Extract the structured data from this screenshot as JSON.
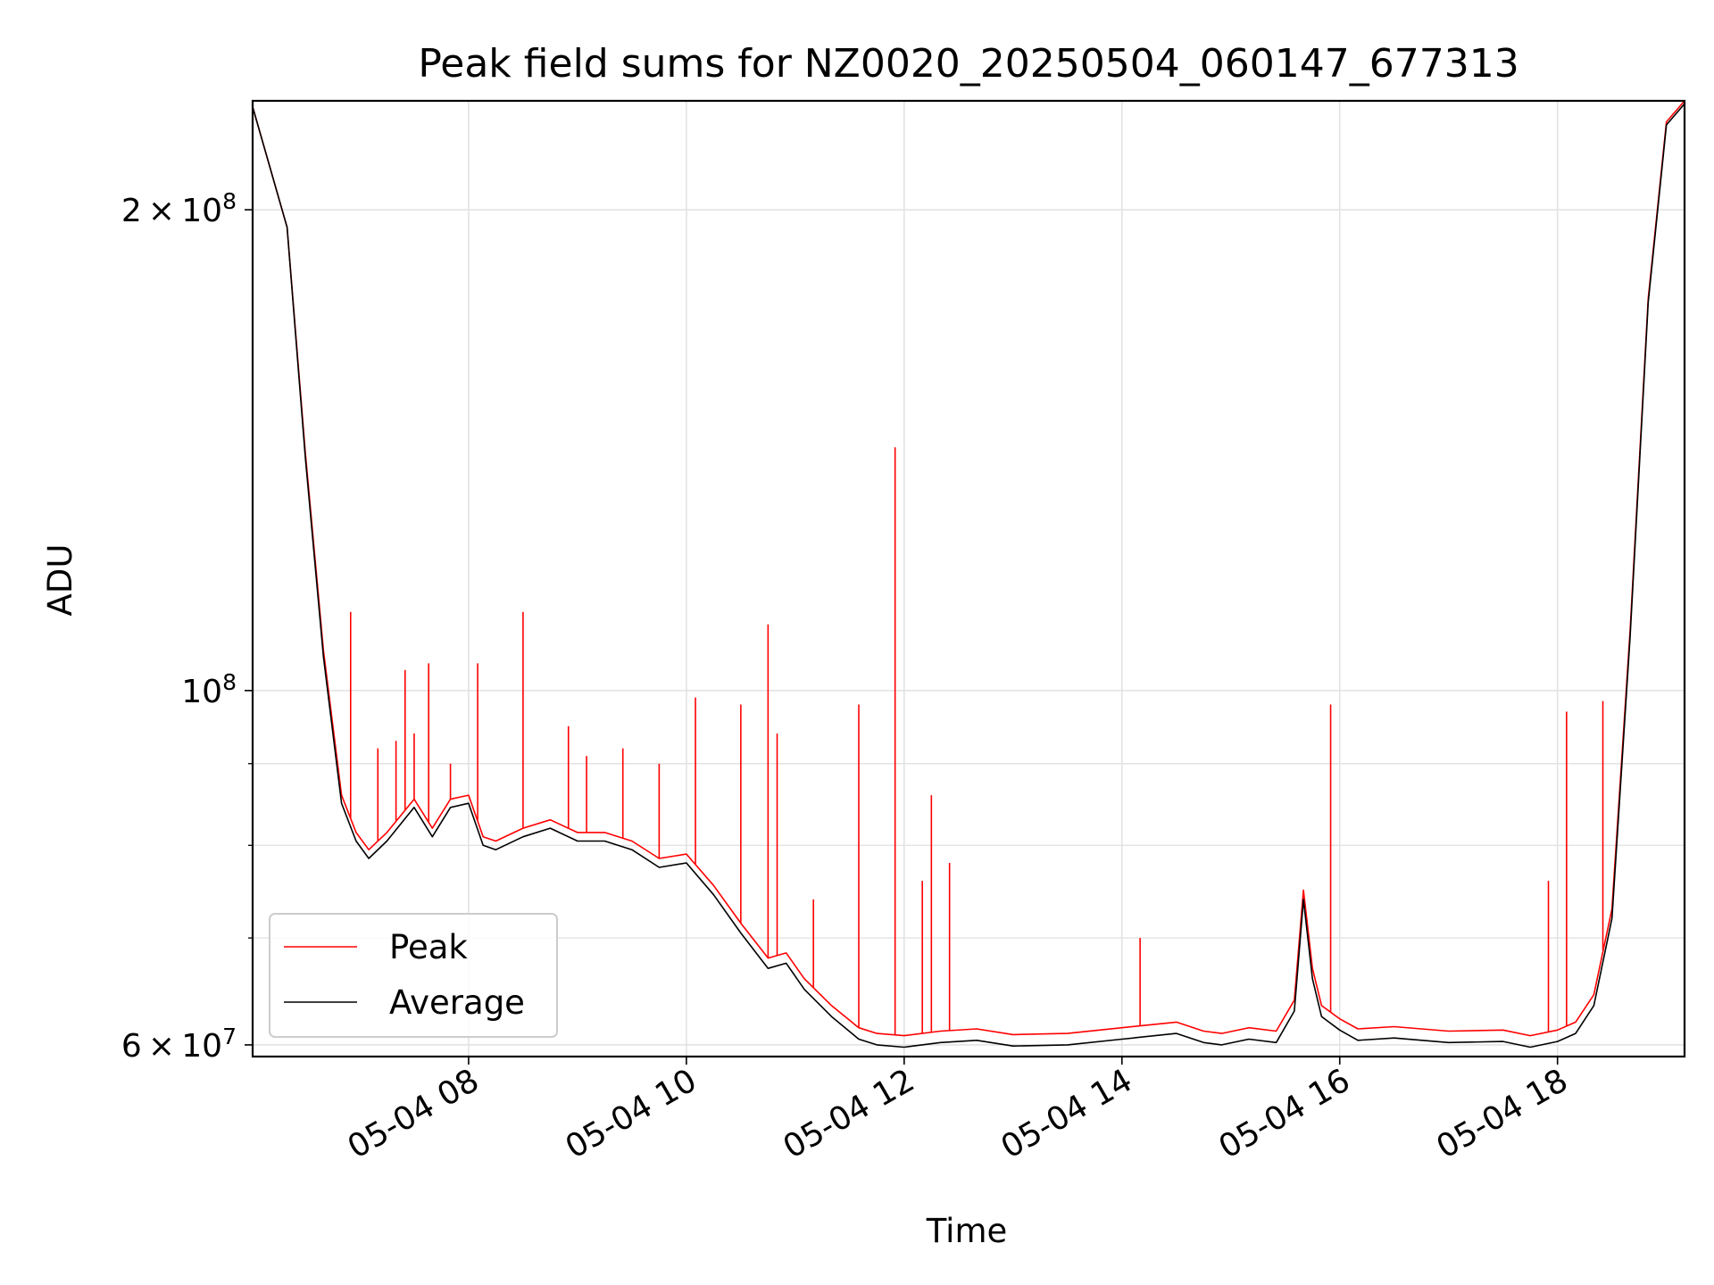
{
  "chart_data": {
    "type": "line",
    "title": "Peak field sums for NZ0020_20250504_060147_677313",
    "xlabel": "Time",
    "ylabel": "ADU",
    "x_date": "2025-05-04",
    "x_range": [
      "06:01",
      "19:10"
    ],
    "y_scale": "log",
    "ylim": [
      59000000,
      234000000
    ],
    "grid": true,
    "legend_position": "lower-left",
    "x_ticks": [
      {
        "value": "08:00",
        "label": "05-04 08"
      },
      {
        "value": "10:00",
        "label": "05-04 10"
      },
      {
        "value": "12:00",
        "label": "05-04 12"
      },
      {
        "value": "14:00",
        "label": "05-04 14"
      },
      {
        "value": "16:00",
        "label": "05-04 16"
      },
      {
        "value": "18:00",
        "label": "05-04 18"
      }
    ],
    "y_ticks": [
      {
        "value": 60000000,
        "base": "6",
        "exp": "7"
      },
      {
        "value": 100000000,
        "base": "",
        "exp": "8"
      },
      {
        "value": 200000000,
        "base": "2",
        "exp": "8"
      }
    ],
    "y_minor_ticks": [
      70000000,
      80000000,
      90000000
    ],
    "series": [
      {
        "name": "Average",
        "color": "#000000",
        "x": [
          "06:01",
          "06:20",
          "06:30",
          "06:40",
          "06:50",
          "06:58",
          "07:05",
          "07:15",
          "07:30",
          "07:40",
          "07:50",
          "08:00",
          "08:08",
          "08:15",
          "08:30",
          "08:45",
          "09:00",
          "09:15",
          "09:30",
          "09:45",
          "10:00",
          "10:15",
          "10:30",
          "10:45",
          "10:55",
          "11:05",
          "11:20",
          "11:35",
          "11:45",
          "12:00",
          "12:20",
          "12:40",
          "13:00",
          "13:30",
          "14:00",
          "14:30",
          "14:45",
          "14:55",
          "15:10",
          "15:25",
          "15:35",
          "15:40",
          "15:45",
          "15:50",
          "16:00",
          "16:10",
          "16:30",
          "17:00",
          "17:30",
          "17:45",
          "18:00",
          "18:10",
          "18:20",
          "18:30",
          "18:40",
          "18:50",
          "19:00",
          "19:10"
        ],
        "y": [
          232000000,
          195000000,
          140000000,
          105000000,
          85000000,
          80500000,
          78500000,
          80500000,
          84500000,
          81000000,
          84500000,
          85000000,
          80000000,
          79500000,
          81000000,
          82000000,
          80500000,
          80500000,
          79500000,
          77500000,
          78000000,
          74500000,
          70500000,
          67000000,
          67500000,
          65000000,
          62500000,
          60500000,
          60000000,
          59800000,
          60200000,
          60400000,
          59900000,
          60000000,
          60500000,
          61000000,
          60200000,
          60000000,
          60500000,
          60200000,
          63000000,
          74000000,
          66000000,
          62500000,
          61300000,
          60400000,
          60600000,
          60200000,
          60300000,
          59800000,
          60300000,
          61000000,
          63500000,
          72000000,
          108000000,
          175000000,
          226000000,
          233000000
        ]
      },
      {
        "name": "Peak",
        "color": "#ff0000",
        "x": [
          "06:01",
          "06:20",
          "06:30",
          "06:40",
          "06:50",
          "06:58",
          "07:05",
          "07:15",
          "07:30",
          "07:40",
          "07:50",
          "08:00",
          "08:08",
          "08:15",
          "08:30",
          "08:45",
          "09:00",
          "09:15",
          "09:30",
          "09:45",
          "10:00",
          "10:15",
          "10:30",
          "10:45",
          "10:55",
          "11:05",
          "11:20",
          "11:35",
          "11:45",
          "12:00",
          "12:20",
          "12:40",
          "13:00",
          "13:30",
          "14:00",
          "14:30",
          "14:45",
          "14:55",
          "15:10",
          "15:25",
          "15:35",
          "15:40",
          "15:45",
          "15:50",
          "16:00",
          "16:10",
          "16:30",
          "17:00",
          "17:30",
          "17:45",
          "18:00",
          "18:10",
          "18:20",
          "18:30",
          "18:40",
          "18:50",
          "19:00",
          "19:10"
        ],
        "y": [
          232000000,
          195000000,
          141000000,
          106000000,
          86000000,
          81500000,
          79500000,
          81500000,
          85500000,
          82000000,
          85500000,
          86000000,
          81000000,
          80500000,
          82000000,
          83000000,
          81500000,
          81500000,
          80500000,
          78500000,
          79000000,
          75500000,
          71500000,
          68000000,
          68500000,
          66000000,
          63500000,
          61500000,
          61000000,
          60800000,
          61200000,
          61400000,
          60900000,
          61000000,
          61500000,
          62000000,
          61200000,
          61000000,
          61500000,
          61200000,
          64000000,
          75000000,
          67000000,
          63500000,
          62300000,
          61400000,
          61600000,
          61200000,
          61300000,
          60800000,
          61300000,
          62000000,
          64500000,
          73000000,
          109000000,
          176000000,
          227000000,
          234000000
        ],
        "spikes": [
          {
            "x": "06:55",
            "y": 112000000
          },
          {
            "x": "07:10",
            "y": 92000000
          },
          {
            "x": "07:20",
            "y": 93000000
          },
          {
            "x": "07:25",
            "y": 103000000
          },
          {
            "x": "07:30",
            "y": 94000000
          },
          {
            "x": "07:38",
            "y": 104000000
          },
          {
            "x": "07:50",
            "y": 90000000
          },
          {
            "x": "08:05",
            "y": 104000000
          },
          {
            "x": "08:30",
            "y": 112000000
          },
          {
            "x": "08:55",
            "y": 95000000
          },
          {
            "x": "09:05",
            "y": 91000000
          },
          {
            "x": "09:25",
            "y": 92000000
          },
          {
            "x": "09:45",
            "y": 90000000
          },
          {
            "x": "10:05",
            "y": 99000000
          },
          {
            "x": "10:30",
            "y": 98000000
          },
          {
            "x": "10:45",
            "y": 110000000
          },
          {
            "x": "10:50",
            "y": 94000000
          },
          {
            "x": "11:10",
            "y": 74000000
          },
          {
            "x": "11:35",
            "y": 98000000
          },
          {
            "x": "11:55",
            "y": 142000000
          },
          {
            "x": "12:10",
            "y": 76000000
          },
          {
            "x": "12:15",
            "y": 86000000
          },
          {
            "x": "12:25",
            "y": 78000000
          },
          {
            "x": "14:10",
            "y": 70000000
          },
          {
            "x": "15:55",
            "y": 98000000
          },
          {
            "x": "17:55",
            "y": 76000000
          },
          {
            "x": "18:05",
            "y": 97000000
          },
          {
            "x": "18:25",
            "y": 98500000
          }
        ]
      }
    ]
  }
}
